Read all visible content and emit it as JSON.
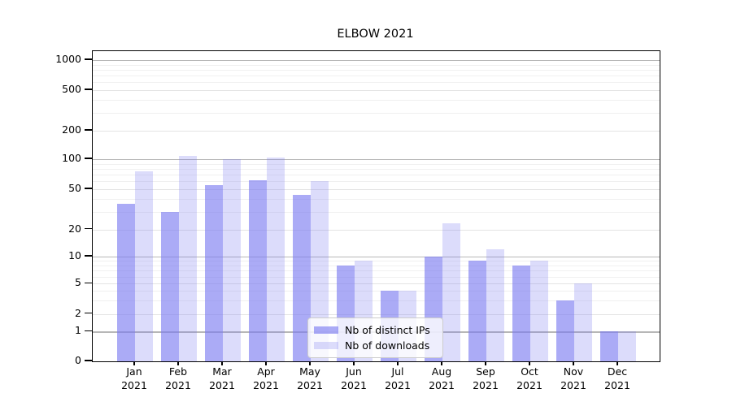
{
  "title": "ELBOW 2021",
  "chart_data": {
    "type": "bar",
    "title": "ELBOW 2021",
    "categories": [
      "Jan",
      "Feb",
      "Mar",
      "Apr",
      "May",
      "Jun",
      "Jul",
      "Aug",
      "Sep",
      "Oct",
      "Nov",
      "Dec"
    ],
    "year_label": "2021",
    "series": [
      {
        "name": "Nb of distinct IPs",
        "color": "rgba(120,120,240,0.62)",
        "values": [
          36,
          30,
          55,
          61,
          44,
          8,
          4,
          10,
          9,
          8,
          3,
          1
        ]
      },
      {
        "name": "Nb of downloads",
        "color": "rgba(120,120,240,0.26)",
        "values": [
          75,
          108,
          100,
          104,
          60,
          9,
          4,
          23,
          12,
          9,
          5,
          1
        ]
      }
    ],
    "xlabel": "",
    "ylabel": "",
    "yscale": "symlog-like",
    "ylim": [
      0,
      1000
    ],
    "ytick_labels": [
      "0",
      "1",
      "2",
      "5",
      "10",
      "20",
      "50",
      "100",
      "200",
      "500",
      "1000"
    ],
    "grid": "on",
    "legend_position": "lower center"
  },
  "legend": {
    "items": [
      {
        "label": "Nb of distinct IPs"
      },
      {
        "label": "Nb of downloads"
      }
    ]
  }
}
